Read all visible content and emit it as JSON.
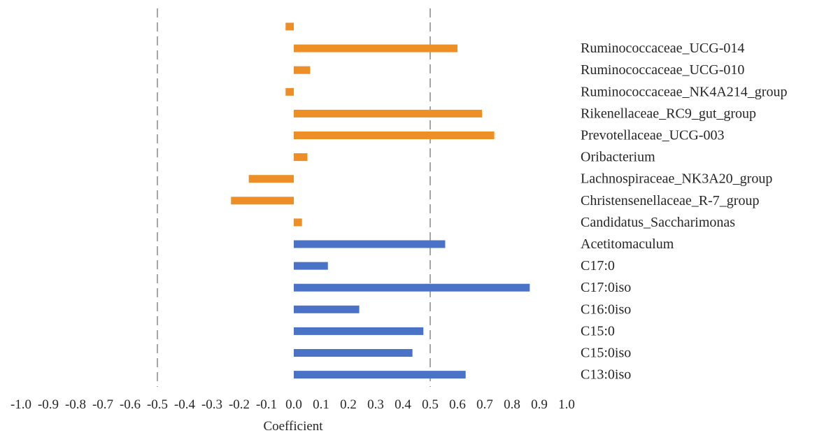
{
  "chart_data": {
    "type": "bar",
    "orientation": "horizontal",
    "xlabel": "Coefficient",
    "xlim": [
      -1.0,
      1.0
    ],
    "xticks": [
      -1.0,
      -0.9,
      -0.8,
      -0.7,
      -0.6,
      -0.5,
      -0.4,
      -0.3,
      -0.2,
      -0.1,
      0.0,
      0.1,
      0.2,
      0.3,
      0.4,
      0.5,
      0.6,
      0.7,
      0.8,
      0.9,
      1.0
    ],
    "xtick_labels": [
      "-1.0",
      "-0.9",
      "-0.8",
      "-0.7",
      "-0.6",
      "-0.5",
      "-0.4",
      "-0.3",
      "-0.2",
      "-0.1",
      "0.0",
      "0.1",
      "0.2",
      "0.3",
      "0.4",
      "0.5",
      "0.6",
      "0.7",
      "0.8",
      "0.9",
      "1.0"
    ],
    "reference_lines": [
      -0.5,
      0.5
    ],
    "grid": false,
    "colors": {
      "orange": "#ed8e26",
      "blue": "#4a72c6",
      "reference_line": "#a6a6a6"
    },
    "bars": [
      {
        "value": -0.03,
        "color": "orange"
      },
      {
        "label": "Ruminococcaceae_UCG-014",
        "value": 0.6,
        "color": "orange"
      },
      {
        "label": "Ruminococcaceae_UCG-010",
        "value": 0.06,
        "color": "orange"
      },
      {
        "label": "Ruminococcaceae_NK4A214_group",
        "value": -0.03,
        "color": "orange"
      },
      {
        "label": "Rikenellaceae_RC9_gut_group",
        "value": 0.69,
        "color": "orange"
      },
      {
        "label": "Prevotellaceae_UCG-003",
        "value": 0.735,
        "color": "orange"
      },
      {
        "label": "Oribacterium",
        "value": 0.05,
        "color": "orange"
      },
      {
        "label": "Lachnospiraceae_NK3A20_group",
        "value": -0.165,
        "color": "orange"
      },
      {
        "label": "Christensenellaceae_R-7_group",
        "value": -0.23,
        "color": "orange"
      },
      {
        "label": "Candidatus_Saccharimonas",
        "value": 0.03,
        "color": "orange"
      },
      {
        "label": "Acetitomaculum",
        "value": 0.555,
        "color": "blue"
      },
      {
        "label": "C17:0",
        "value": 0.125,
        "color": "blue"
      },
      {
        "label": "C17:0iso",
        "value": 0.865,
        "color": "blue"
      },
      {
        "label": "C16:0iso",
        "value": 0.24,
        "color": "blue"
      },
      {
        "label": "C15:0",
        "value": 0.475,
        "color": "blue"
      },
      {
        "label": "C15:0iso",
        "value": 0.435,
        "color": "blue"
      },
      {
        "label": "C13:0iso",
        "value": 0.63,
        "color": "blue"
      }
    ]
  }
}
